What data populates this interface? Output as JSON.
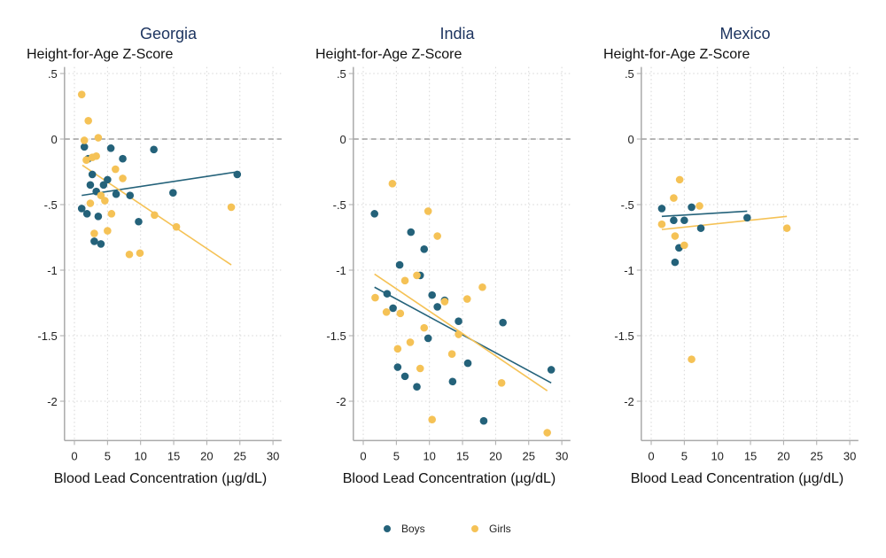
{
  "chart_data": [
    {
      "type": "scatter",
      "title": "Georgia",
      "ylabel": "Height-for-Age Z-Score",
      "xlabel": "Blood Lead Concentration (µg/dL)",
      "xlim": [
        -1.5,
        31.3
      ],
      "ylim": [
        -2.3,
        0.55
      ],
      "xticks": [
        0,
        5,
        10,
        15,
        20,
        25,
        30
      ],
      "xtick_labels": [
        "0",
        "5",
        "10",
        "15",
        "20",
        "25",
        "30"
      ],
      "yticks": [
        0.5,
        0,
        -0.5,
        -1,
        -1.5,
        -2
      ],
      "ytick_labels": [
        ".5",
        "0",
        "-.5",
        "-1",
        "-1.5",
        "-2"
      ],
      "reference_line_y": 0,
      "series": [
        {
          "name": "Boys",
          "points": [
            [
              1.5,
              -0.06
            ],
            [
              5.5,
              -0.07
            ],
            [
              12.0,
              -0.08
            ],
            [
              7.3,
              -0.15
            ],
            [
              2.1,
              -0.15
            ],
            [
              2.7,
              -0.27
            ],
            [
              24.6,
              -0.27
            ],
            [
              5.0,
              -0.31
            ],
            [
              2.4,
              -0.35
            ],
            [
              4.4,
              -0.35
            ],
            [
              3.3,
              -0.4
            ],
            [
              6.3,
              -0.42
            ],
            [
              8.4,
              -0.43
            ],
            [
              14.9,
              -0.41
            ],
            [
              1.1,
              -0.53
            ],
            [
              1.9,
              -0.57
            ],
            [
              3.6,
              -0.59
            ],
            [
              9.7,
              -0.63
            ],
            [
              3.0,
              -0.78
            ],
            [
              4.0,
              -0.8
            ]
          ],
          "fit": [
            [
              1.1,
              -0.43
            ],
            [
              24.6,
              -0.25
            ]
          ]
        },
        {
          "name": "Girls",
          "points": [
            [
              1.1,
              0.34
            ],
            [
              2.1,
              0.14
            ],
            [
              1.5,
              -0.01
            ],
            [
              3.6,
              0.01
            ],
            [
              1.8,
              -0.16
            ],
            [
              2.7,
              -0.14
            ],
            [
              3.3,
              -0.13
            ],
            [
              6.2,
              -0.23
            ],
            [
              7.3,
              -0.3
            ],
            [
              4.0,
              -0.43
            ],
            [
              4.6,
              -0.47
            ],
            [
              2.4,
              -0.49
            ],
            [
              5.6,
              -0.57
            ],
            [
              12.1,
              -0.58
            ],
            [
              23.7,
              -0.52
            ],
            [
              15.4,
              -0.67
            ],
            [
              3.0,
              -0.72
            ],
            [
              5.0,
              -0.7
            ],
            [
              8.3,
              -0.88
            ],
            [
              9.9,
              -0.87
            ]
          ],
          "fit": [
            [
              1.2,
              -0.2
            ],
            [
              23.7,
              -0.96
            ]
          ]
        }
      ]
    },
    {
      "type": "scatter",
      "title": "India",
      "ylabel": "Height-for-Age Z-Score",
      "xlabel": "Blood Lead Concentration (µg/dL)",
      "xlim": [
        -1.5,
        31.3
      ],
      "ylim": [
        -2.3,
        0.55
      ],
      "xticks": [
        0,
        5,
        10,
        15,
        20,
        25,
        30
      ],
      "xtick_labels": [
        "0",
        "5",
        "10",
        "15",
        "20",
        "25",
        "30"
      ],
      "yticks": [
        0.5,
        0,
        -0.5,
        -1,
        -1.5,
        -2
      ],
      "ytick_labels": [
        ".5",
        "0",
        "-.5",
        "-1",
        "-1.5",
        "-2"
      ],
      "reference_line_y": 0,
      "series": [
        {
          "name": "Boys",
          "points": [
            [
              1.7,
              -0.57
            ],
            [
              7.2,
              -0.71
            ],
            [
              9.2,
              -0.84
            ],
            [
              5.5,
              -0.96
            ],
            [
              8.6,
              -1.04
            ],
            [
              3.6,
              -1.18
            ],
            [
              10.4,
              -1.19
            ],
            [
              12.3,
              -1.23
            ],
            [
              11.2,
              -1.28
            ],
            [
              4.5,
              -1.29
            ],
            [
              14.4,
              -1.39
            ],
            [
              21.1,
              -1.4
            ],
            [
              9.8,
              -1.52
            ],
            [
              15.8,
              -1.71
            ],
            [
              5.2,
              -1.74
            ],
            [
              28.4,
              -1.76
            ],
            [
              6.3,
              -1.81
            ],
            [
              13.5,
              -1.85
            ],
            [
              8.1,
              -1.89
            ],
            [
              18.2,
              -2.15
            ]
          ],
          "fit": [
            [
              1.7,
              -1.13
            ],
            [
              28.4,
              -1.86
            ]
          ]
        },
        {
          "name": "Girls",
          "points": [
            [
              4.4,
              -0.34
            ],
            [
              9.8,
              -0.55
            ],
            [
              11.2,
              -0.74
            ],
            [
              8.1,
              -1.04
            ],
            [
              6.3,
              -1.08
            ],
            [
              18.0,
              -1.13
            ],
            [
              1.8,
              -1.21
            ],
            [
              15.7,
              -1.22
            ],
            [
              12.3,
              -1.24
            ],
            [
              3.5,
              -1.32
            ],
            [
              5.6,
              -1.33
            ],
            [
              9.2,
              -1.44
            ],
            [
              14.4,
              -1.49
            ],
            [
              7.1,
              -1.55
            ],
            [
              5.2,
              -1.6
            ],
            [
              13.4,
              -1.64
            ],
            [
              8.6,
              -1.75
            ],
            [
              20.9,
              -1.86
            ],
            [
              10.4,
              -2.14
            ],
            [
              27.8,
              -2.24
            ]
          ],
          "fit": [
            [
              1.7,
              -1.03
            ],
            [
              27.8,
              -1.92
            ]
          ]
        }
      ]
    },
    {
      "type": "scatter",
      "title": "Mexico",
      "ylabel": "Height-for-Age Z-Score",
      "xlabel": "Blood Lead Concentration (µg/dL)",
      "xlim": [
        -1.5,
        31.3
      ],
      "ylim": [
        -2.3,
        0.55
      ],
      "xticks": [
        0,
        5,
        10,
        15,
        20,
        25,
        30
      ],
      "xtick_labels": [
        "0",
        "5",
        "10",
        "15",
        "20",
        "25",
        "30"
      ],
      "yticks": [
        0.5,
        0,
        -0.5,
        -1,
        -1.5,
        -2
      ],
      "ytick_labels": [
        ".5",
        "0",
        "-.5",
        "-1",
        "-1.5",
        "-2"
      ],
      "reference_line_y": 0,
      "series": [
        {
          "name": "Boys",
          "points": [
            [
              1.6,
              -0.53
            ],
            [
              6.1,
              -0.52
            ],
            [
              3.4,
              -0.62
            ],
            [
              5.0,
              -0.62
            ],
            [
              14.5,
              -0.6
            ],
            [
              7.5,
              -0.68
            ],
            [
              4.2,
              -0.83
            ],
            [
              3.6,
              -0.94
            ]
          ],
          "fit": [
            [
              1.6,
              -0.59
            ],
            [
              14.5,
              -0.55
            ]
          ]
        },
        {
          "name": "Girls",
          "points": [
            [
              4.3,
              -0.31
            ],
            [
              3.4,
              -0.45
            ],
            [
              7.3,
              -0.51
            ],
            [
              1.6,
              -0.65
            ],
            [
              3.6,
              -0.74
            ],
            [
              5.0,
              -0.81
            ],
            [
              20.5,
              -0.68
            ],
            [
              6.1,
              -1.68
            ]
          ],
          "fit": [
            [
              1.6,
              -0.69
            ],
            [
              20.5,
              -0.59
            ]
          ]
        }
      ]
    }
  ],
  "legend": {
    "placement": "bottom",
    "items": [
      {
        "label": "Boys",
        "color": "#24627a"
      },
      {
        "label": "Girls",
        "color": "#f5c256"
      }
    ]
  },
  "colors": {
    "Boys": "#24627a",
    "Girls": "#f5c256",
    "title": "#1e3560"
  }
}
